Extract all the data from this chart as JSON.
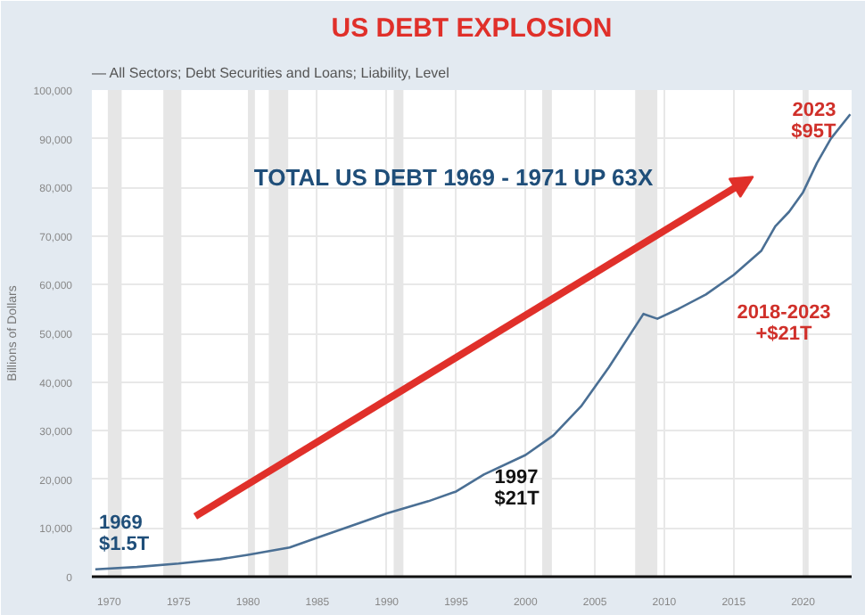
{
  "chart_data": {
    "type": "line",
    "title": "US DEBT EXPLOSION",
    "subtitle": "— All Sectors; Debt Securities and Loans; Liability, Level",
    "ylabel": "Billions of Dollars",
    "x": [
      1969,
      1972,
      1975,
      1978,
      1980,
      1983,
      1985,
      1988,
      1990,
      1993,
      1995,
      1997,
      2000,
      2002,
      2004,
      2006,
      2008.5,
      2009.5,
      2011,
      2013,
      2015,
      2017,
      2018,
      2019,
      2020,
      2021,
      2022,
      2023.4
    ],
    "series": [
      {
        "color": "#4a6f94",
        "values": [
          1500,
          2000,
          2700,
          3600,
          4500,
          6000,
          8000,
          11000,
          13000,
          15500,
          17500,
          21000,
          25000,
          29000,
          35000,
          43000,
          54000,
          53000,
          55000,
          58000,
          62000,
          67000,
          72000,
          75000,
          79000,
          85000,
          90000,
          95000
        ]
      }
    ],
    "xlim": [
      1968.75,
      2023.5
    ],
    "ylim": [
      0,
      100000
    ],
    "xticks": [
      1970,
      1975,
      1980,
      1985,
      1990,
      1995,
      2000,
      2005,
      2010,
      2015,
      2020
    ],
    "yticks": [
      0,
      {
        "value": 10000,
        "label": "10,000"
      },
      {
        "value": 20000,
        "label": "20,000"
      },
      {
        "value": 30000,
        "label": "30,000"
      },
      {
        "value": 40000,
        "label": "40,000"
      },
      {
        "value": 50000,
        "label": "50,000"
      },
      {
        "value": 60000,
        "label": "60,000"
      },
      {
        "value": 70000,
        "label": "70,000"
      },
      {
        "value": 80000,
        "label": "80,000"
      },
      {
        "value": 90000,
        "label": "90,000"
      },
      {
        "value": 100000,
        "label": "100,000"
      }
    ],
    "grid": true,
    "marker": "none",
    "line_style": "solid",
    "bands": [
      {
        "axis": "x",
        "from": 1969.9,
        "to": 1970.9,
        "color": "#e6e6e6"
      },
      {
        "axis": "x",
        "from": 1973.9,
        "to": 1975.2,
        "color": "#e6e6e6"
      },
      {
        "axis": "x",
        "from": 1980.0,
        "to": 1980.5,
        "color": "#e6e6e6"
      },
      {
        "axis": "x",
        "from": 1981.5,
        "to": 1982.9,
        "color": "#e6e6e6"
      },
      {
        "axis": "x",
        "from": 1990.5,
        "to": 1991.2,
        "color": "#e6e6e6"
      },
      {
        "axis": "x",
        "from": 2001.2,
        "to": 2001.9,
        "color": "#e6e6e6"
      },
      {
        "axis": "x",
        "from": 2007.9,
        "to": 2009.5,
        "color": "#e6e6e6"
      },
      {
        "axis": "x",
        "from": 2020.1,
        "to": 2020.4,
        "color": "#e6e6e6"
      }
    ],
    "annotations": [
      "TOTAL US DEBT 1969 - 1971 UP 63X",
      {
        "text": "1969\n$1.5T",
        "x": 1969,
        "y": 1500
      },
      {
        "text": "1997\n$21T",
        "x": 1997,
        "y": 21000
      },
      {
        "text": "2023\n$95T",
        "x": 2023.4,
        "y": 95000
      },
      "2018-2023\n+$21T"
    ]
  }
}
